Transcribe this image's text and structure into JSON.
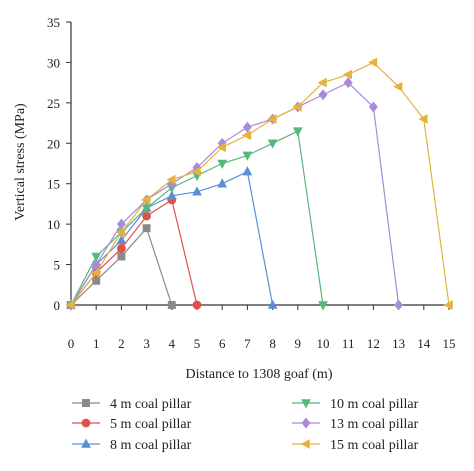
{
  "chart_data": {
    "type": "line",
    "xlabel": "Distance to 1308 goaf (m)",
    "ylabel": "Vertical stress (MPa)",
    "xlim": [
      0,
      15
    ],
    "ylim": [
      0,
      35
    ],
    "xticks": [
      "0",
      "1",
      "2",
      "3",
      "4",
      "5",
      "6",
      "7",
      "8",
      "9",
      "10",
      "11",
      "12",
      "13",
      "14",
      "15"
    ],
    "yticks": [
      "0",
      "5",
      "10",
      "15",
      "20",
      "25",
      "30",
      "35"
    ],
    "grid": false,
    "legend_position": "bottom",
    "series": [
      {
        "name": "4 m coal pillar",
        "color": "#8a8a8a",
        "marker": "square",
        "x": [
          0,
          1,
          2,
          3,
          4
        ],
        "y": [
          0,
          3,
          6,
          9.5,
          0
        ]
      },
      {
        "name": "5 m coal pillar",
        "color": "#e0504a",
        "marker": "circle",
        "x": [
          0,
          1,
          2,
          3,
          4,
          5
        ],
        "y": [
          0,
          4,
          7,
          11,
          13,
          0
        ]
      },
      {
        "name": "8 m coal pillar",
        "color": "#5a8fd6",
        "marker": "triangle-up",
        "x": [
          0,
          1,
          2,
          3,
          4,
          5,
          6,
          7,
          8
        ],
        "y": [
          0,
          5,
          8,
          12,
          13.5,
          14,
          15,
          16.5,
          0
        ]
      },
      {
        "name": "10 m coal pillar",
        "color": "#56b87a",
        "marker": "triangle-down",
        "x": [
          0,
          1,
          2,
          3,
          4,
          5,
          6,
          7,
          8,
          9,
          10
        ],
        "y": [
          0,
          6,
          9,
          12,
          14.5,
          16,
          17.5,
          18.5,
          20,
          21.5,
          0
        ]
      },
      {
        "name": "13 m coal pillar",
        "color": "#a98bd8",
        "marker": "diamond",
        "x": [
          0,
          1,
          2,
          3,
          4,
          5,
          6,
          7,
          8,
          9,
          10,
          11,
          12,
          13
        ],
        "y": [
          0,
          5,
          10,
          13,
          15,
          17,
          20,
          22,
          23,
          24.5,
          26,
          27.5,
          24.5,
          0
        ]
      },
      {
        "name": "15 m coal pillar",
        "color": "#e3b43c",
        "marker": "triangle-left",
        "x": [
          0,
          1,
          2,
          3,
          4,
          5,
          6,
          7,
          8,
          9,
          10,
          11,
          12,
          13,
          14,
          15
        ],
        "y": [
          0,
          4,
          9,
          13,
          15.5,
          16.5,
          19.5,
          21,
          23,
          24.5,
          27.5,
          28.5,
          30,
          27,
          23,
          0
        ]
      }
    ]
  }
}
